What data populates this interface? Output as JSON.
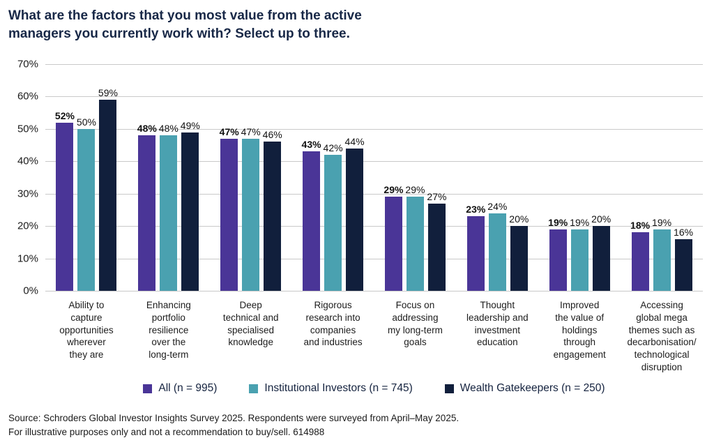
{
  "title": "What are the factors that you most value from the active\nmanagers you currently work with? Select up to three.",
  "footer": {
    "line1": "Source: Schroders Global Investor Insights Survey 2025. Respondents were surveyed from April–May 2025.",
    "line2": "For illustrative purposes only and not a recommendation to buy/sell. 614988"
  },
  "colors": {
    "title_navy": "#182847",
    "gridline": "#c9c9c9",
    "purple": "#4a3597",
    "teal": "#4aa1b0",
    "navy": "#111f3c"
  },
  "chart_data": {
    "type": "bar",
    "title": "What are the factors that you most value from the active managers you currently work with? Select up to three.",
    "xlabel": "",
    "ylabel": "",
    "ylim": [
      0,
      70
    ],
    "ytick_step": 10,
    "yticks": [
      "0%",
      "10%",
      "20%",
      "30%",
      "40%",
      "50%",
      "60%",
      "70%"
    ],
    "grid": true,
    "legend_position": "bottom",
    "categories": [
      "Ability to\ncapture\nopportunities\nwherever\nthey are",
      "Enhancing\nportfolio\nresilience\nover the\nlong-term",
      "Deep\ntechnical and\nspecialised\nknowledge",
      "Rigorous\nresearch into\ncompanies\nand industries",
      "Focus on\naddressing\nmy long-term\ngoals",
      "Thought\nleadership and\ninvestment\neducation",
      "Improved\nthe value of\nholdings\nthrough\nengagement",
      "Accessing\nglobal mega\nthemes such as\ndecarbonisation/\ntechnological\ndisruption"
    ],
    "series": [
      {
        "name": "All (n = 995)",
        "color": "#4a3597",
        "bold_labels": true,
        "values": [
          52,
          48,
          47,
          43,
          29,
          23,
          19,
          18
        ]
      },
      {
        "name": "Institutional Investors (n = 745)",
        "color": "#4aa1b0",
        "bold_labels": false,
        "values": [
          50,
          48,
          47,
          42,
          29,
          24,
          19,
          19
        ]
      },
      {
        "name": "Wealth Gatekeepers (n = 250)",
        "color": "#111f3c",
        "bold_labels": false,
        "values": [
          59,
          49,
          46,
          44,
          27,
          20,
          20,
          16
        ]
      }
    ],
    "data_label_format": "{v}%"
  }
}
